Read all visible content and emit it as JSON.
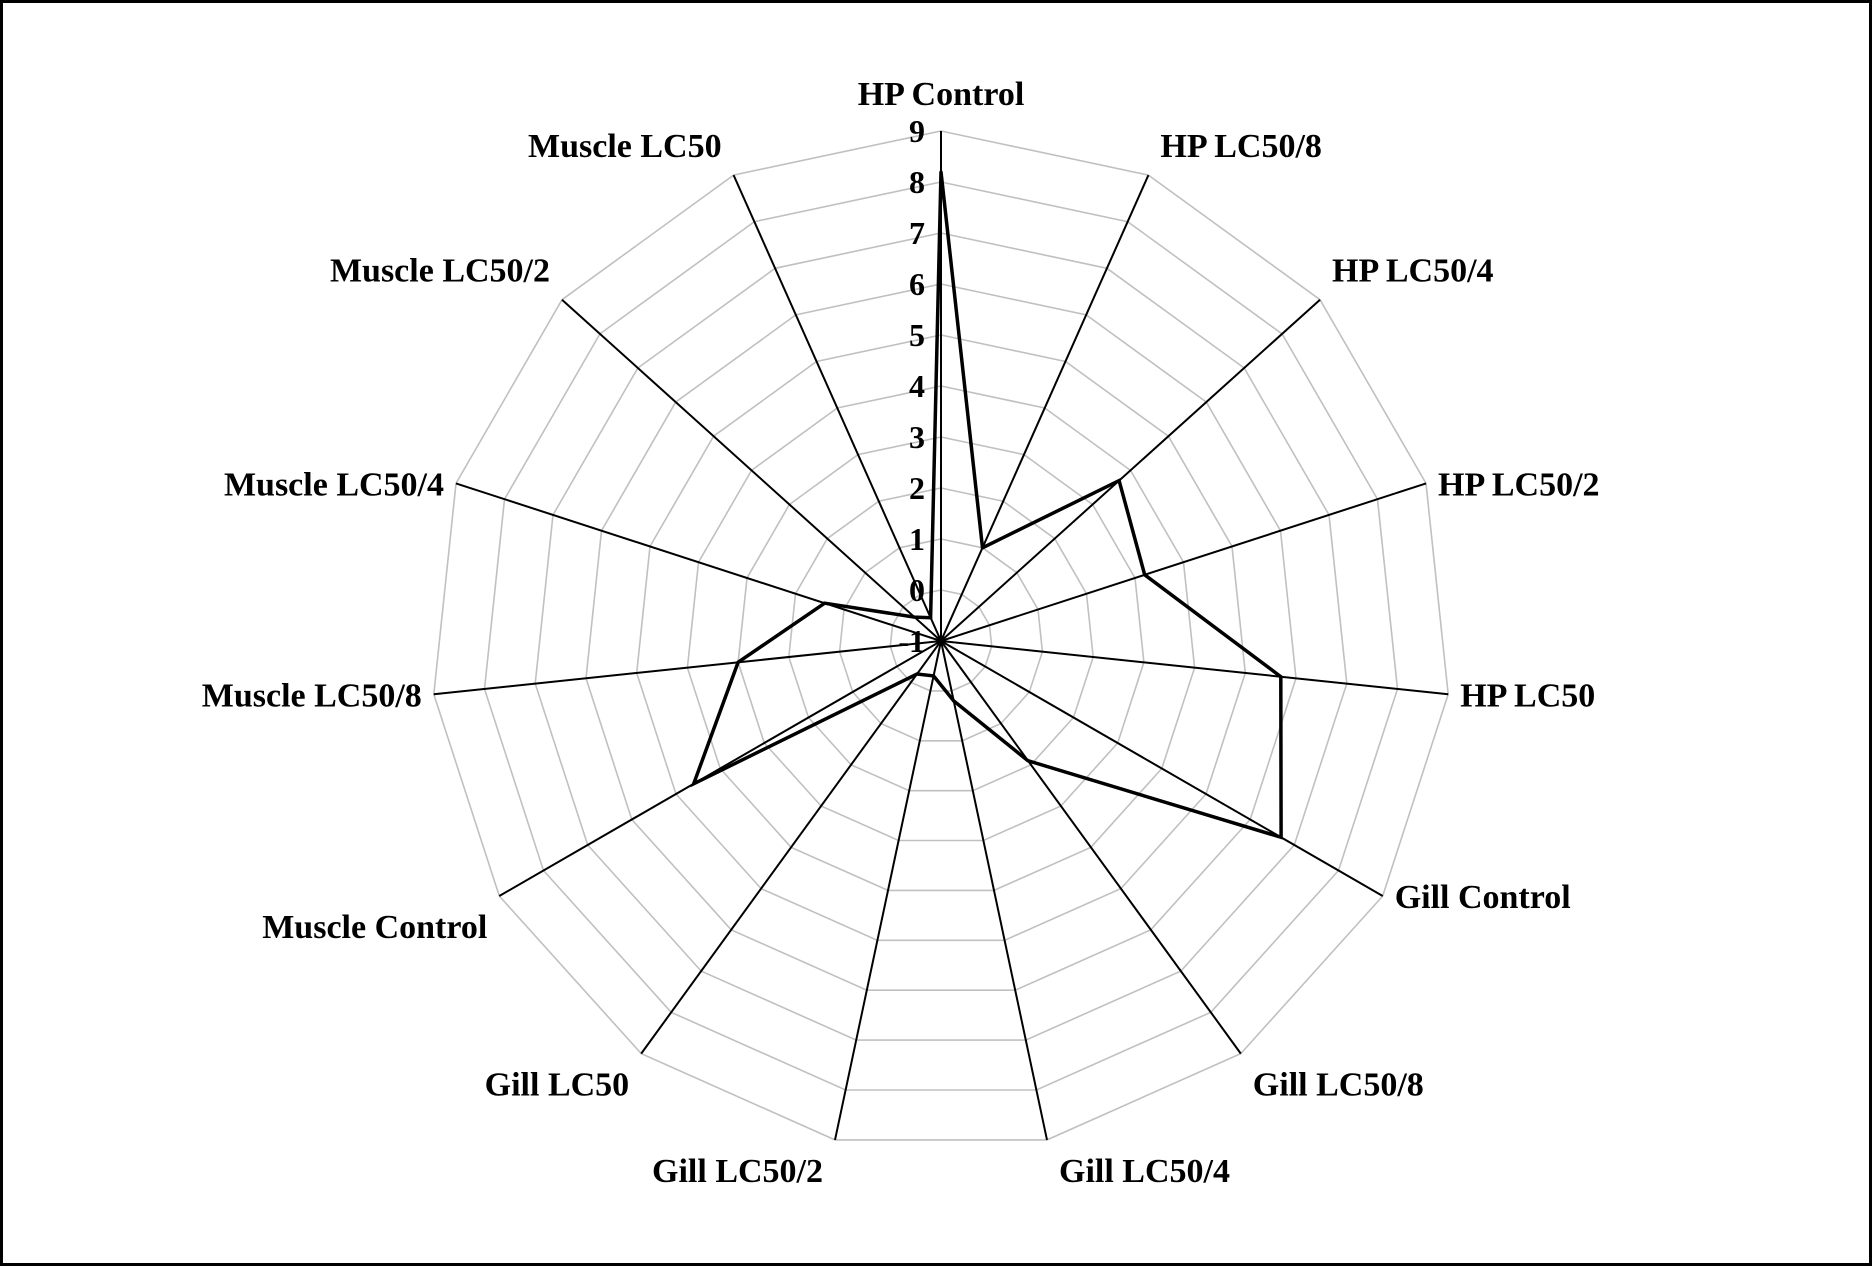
{
  "chart_data": {
    "type": "radar",
    "title": "",
    "categories": [
      "HP Control",
      "HP LC50/8",
      "HP LC50/4",
      "HP LC50/2",
      "HP LC50",
      "Gill Control",
      "Gill LC50/8",
      "Gill LC50/4",
      "Gill LC50/2",
      "Gill LC50",
      "Muscle Control",
      "Muscle LC50/8",
      "Muscle LC50/4",
      "Muscle LC50/2",
      "Muscle LC50"
    ],
    "series": [
      {
        "values": [
          8.2,
          1.0,
          3.7,
          3.2,
          5.7,
          6.7,
          1.9,
          0.2,
          -0.3,
          -0.2,
          4.6,
          3.0,
          1.4,
          -0.3,
          -0.5
        ]
      }
    ],
    "rlim": [
      -1,
      9
    ],
    "rticks": [
      -1,
      0,
      1,
      2,
      3,
      4,
      5,
      6,
      7,
      8,
      9
    ],
    "tick_labels": [
      "-1",
      "0",
      "1",
      "2",
      "3",
      "4",
      "5",
      "6",
      "7",
      "8",
      "9"
    ],
    "grid": true,
    "grid_color": "#c0c0c0",
    "axis_color": "#000000",
    "series_color": "#000000",
    "legend": "none"
  }
}
